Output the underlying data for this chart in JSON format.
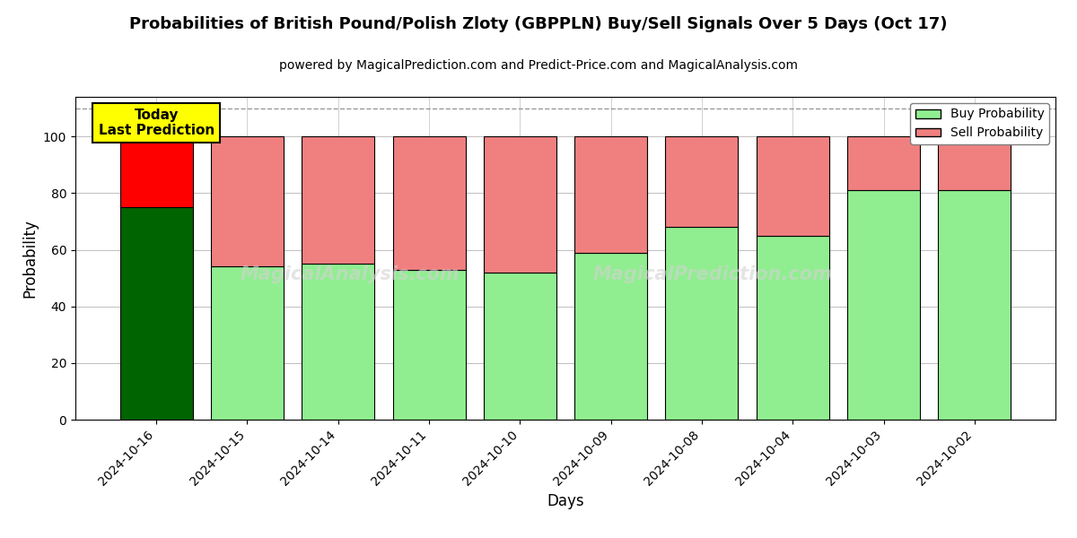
{
  "title": "Probabilities of British Pound/Polish Zloty (GBPPLN) Buy/Sell Signals Over 5 Days (Oct 17)",
  "subtitle": "powered by MagicalPrediction.com and Predict-Price.com and MagicalAnalysis.com",
  "xlabel": "Days",
  "ylabel": "Probability",
  "dates": [
    "2024-10-16",
    "2024-10-15",
    "2024-10-14",
    "2024-10-11",
    "2024-10-10",
    "2024-10-09",
    "2024-10-08",
    "2024-10-04",
    "2024-10-03",
    "2024-10-02"
  ],
  "buy_values": [
    75,
    54,
    55,
    53,
    52,
    59,
    68,
    65,
    81,
    81
  ],
  "sell_values": [
    25,
    46,
    45,
    47,
    48,
    41,
    32,
    35,
    19,
    19
  ],
  "today_buy_color": "#006400",
  "today_sell_color": "#FF0000",
  "buy_color": "#90EE90",
  "sell_color": "#F08080",
  "bar_edge_color": "#000000",
  "ylim": [
    0,
    114
  ],
  "yticks": [
    0,
    20,
    40,
    60,
    80,
    100
  ],
  "dashed_line_y": 110,
  "annotation_text": "Today\nLast Prediction",
  "annotation_bbox_color": "#FFFF00",
  "legend_buy_label": "Buy Probability",
  "legend_sell_label": "Sell Probability",
  "figsize": [
    12,
    6
  ],
  "dpi": 100
}
